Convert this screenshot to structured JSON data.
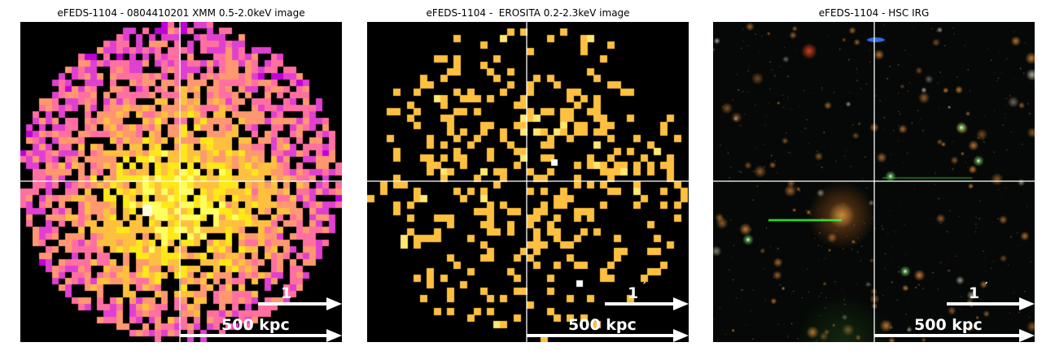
{
  "panels": [
    {
      "title": "eFEDS-1104 - 0804410201 XMM 0.5-2.0keV image",
      "arcmin_label": "1",
      "distance_label": "500 kpc"
    },
    {
      "title": "eFEDS-1104 -  EROSITA 0.2-2.3keV image",
      "arcmin_label": "1",
      "distance_label": "500 kpc"
    },
    {
      "title": "eFEDS-1104 - HSC IRG",
      "arcmin_label": "1",
      "distance_label": "500 kpc"
    }
  ],
  "colors": {
    "background": "#000000",
    "crosshair": "#ffffff",
    "xmm_colormap": [
      "#c000d8",
      "#e040d0",
      "#ff70a0",
      "#ff9870",
      "#ffc040",
      "#ffe818",
      "#ffff60"
    ],
    "erosita_pixel": "#ffc040"
  }
}
